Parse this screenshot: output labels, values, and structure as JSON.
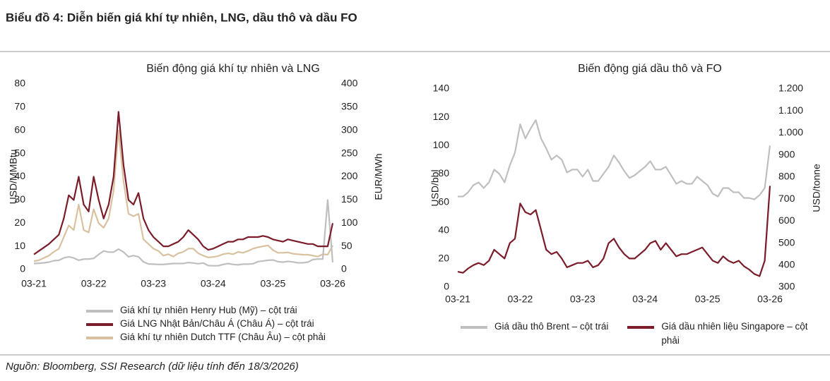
{
  "title": "Biểu đồ 4: Diễn biến giá khí tự nhiên, LNG, dầu thô và dầu FO",
  "source": "Nguồn: Bloomberg, SSI Research (dữ liệu tính đến 18/3/2026)",
  "chart_data": [
    {
      "type": "line",
      "title": "Biến động giá khí tự nhiên và LNG",
      "categories": [
        "03-21",
        null,
        null,
        null,
        null,
        null,
        null,
        null,
        null,
        null,
        null,
        null,
        "03-22",
        null,
        null,
        null,
        null,
        null,
        null,
        null,
        null,
        null,
        null,
        null,
        "03-23",
        null,
        null,
        null,
        null,
        null,
        null,
        null,
        null,
        null,
        null,
        null,
        "03-24",
        null,
        null,
        null,
        null,
        null,
        null,
        null,
        null,
        null,
        null,
        null,
        "03-25",
        null,
        null,
        null,
        null,
        null,
        null,
        null,
        null,
        null,
        null,
        null,
        "03-26"
      ],
      "ylabel": "USD/MMBtu",
      "y2label": "EUR/MWh",
      "ylim": [
        0,
        80
      ],
      "yticks": [
        0,
        10,
        20,
        30,
        40,
        50,
        60,
        70,
        80
      ],
      "y2lim": [
        0,
        400
      ],
      "y2ticks": [
        0,
        50,
        100,
        150,
        200,
        250,
        300,
        350,
        400
      ],
      "series": [
        {
          "name": "Giá khí tự nhiên Henry Hub (Mỹ) – cột trái",
          "color": "#bfbfbf",
          "values": [
            2.6,
            2.7,
            2.9,
            3.2,
            3.8,
            4.0,
            5.0,
            5.5,
            5.0,
            4.0,
            4.5,
            4.5,
            4.8,
            6.5,
            8.0,
            7.5,
            7.5,
            8.8,
            7.5,
            5.5,
            6.0,
            5.5,
            3.3,
            2.4,
            2.3,
            2.2,
            2.2,
            2.4,
            2.6,
            2.6,
            2.6,
            3.0,
            2.8,
            2.5,
            2.8,
            1.7,
            1.6,
            1.6,
            2.2,
            2.6,
            2.2,
            2.0,
            2.3,
            2.3,
            2.5,
            3.4,
            3.7,
            4.0,
            4.1,
            3.4,
            3.2,
            3.5,
            3.3,
            2.9,
            2.9,
            3.2,
            4.3,
            4.5,
            4.5,
            30,
            3.1
          ]
        },
        {
          "name": "Giá LNG Nhật Bản/Châu Á (Châu Á) – cột trái",
          "color": "#7b1c2a",
          "values": [
            6.5,
            8,
            9.5,
            11,
            13,
            15,
            22,
            32,
            30,
            40,
            28,
            25,
            40,
            30,
            22,
            28,
            40,
            68,
            45,
            30,
            28,
            33,
            22,
            17,
            14,
            12,
            10,
            10,
            11,
            12,
            14,
            17,
            15,
            13,
            10,
            8.5,
            9,
            10,
            11,
            12,
            12,
            13,
            13,
            14,
            14,
            14,
            14.5,
            14,
            13,
            12.5,
            12,
            13,
            12.5,
            12,
            11.5,
            11,
            11,
            10,
            10,
            10,
            20
          ]
        },
        {
          "name": "Giá khí tự nhiên Dutch TTF (Châu Âu) – cột phải",
          "color": "#d9c1a0",
          "axis": "y2",
          "values": [
            18,
            20,
            25,
            30,
            38,
            45,
            70,
            95,
            85,
            140,
            85,
            80,
            130,
            100,
            90,
            110,
            170,
            300,
            190,
            120,
            115,
            120,
            65,
            55,
            45,
            40,
            30,
            33,
            28,
            35,
            38,
            45,
            45,
            35,
            30,
            26,
            27,
            29,
            33,
            35,
            33,
            38,
            36,
            40,
            45,
            48,
            50,
            52,
            42,
            36,
            36,
            37,
            34,
            33,
            32,
            32,
            30,
            28,
            33,
            32,
            52
          ]
        }
      ]
    },
    {
      "type": "line",
      "title": "Biến động giá dầu thô và FO",
      "categories": [
        "03-21",
        null,
        null,
        null,
        null,
        null,
        null,
        null,
        null,
        null,
        null,
        null,
        "03-22",
        null,
        null,
        null,
        null,
        null,
        null,
        null,
        null,
        null,
        null,
        null,
        "03-23",
        null,
        null,
        null,
        null,
        null,
        null,
        null,
        null,
        null,
        null,
        null,
        "03-24",
        null,
        null,
        null,
        null,
        null,
        null,
        null,
        null,
        null,
        null,
        null,
        "03-25",
        null,
        null,
        null,
        null,
        null,
        null,
        null,
        null,
        null,
        null,
        null,
        "03-26"
      ],
      "ylabel": "USD/bbl",
      "y2label": "USD/tonne",
      "ylim": [
        0,
        140
      ],
      "yticks": [
        0,
        20,
        40,
        60,
        80,
        100,
        120,
        140
      ],
      "y2lim": [
        300,
        1200
      ],
      "y2ticks": [
        300,
        400,
        500,
        600,
        700,
        800,
        900,
        {
          "value": 1000,
          "label": "1.000"
        },
        {
          "value": 1100,
          "label": "1.100"
        },
        {
          "value": 1200,
          "label": "1.200"
        }
      ],
      "series": [
        {
          "name": "Giá dầu thô Brent – cột trái",
          "color": "#bfbfbf",
          "values": [
            64,
            64,
            67,
            72,
            74,
            70,
            74,
            83,
            80,
            74,
            86,
            95,
            115,
            105,
            112,
            118,
            105,
            98,
            90,
            93,
            90,
            81,
            83,
            83,
            78,
            83,
            75,
            75,
            80,
            85,
            93,
            88,
            82,
            77,
            79,
            82,
            85,
            89,
            83,
            83,
            85,
            79,
            73,
            75,
            73,
            73,
            78,
            75,
            72,
            66,
            64,
            70,
            70,
            67,
            67,
            63,
            63,
            62,
            65,
            70,
            100
          ]
        },
        {
          "name": "Giá dầu nhiên liệu Singapore – cột phải",
          "color": "#7b1c2a",
          "axis": "y2",
          "values": [
            370,
            365,
            385,
            400,
            410,
            400,
            420,
            470,
            450,
            430,
            500,
            520,
            680,
            640,
            630,
            650,
            560,
            470,
            450,
            460,
            430,
            390,
            400,
            410,
            410,
            420,
            390,
            400,
            430,
            500,
            520,
            480,
            450,
            430,
            430,
            450,
            470,
            500,
            510,
            470,
            500,
            470,
            440,
            450,
            450,
            460,
            470,
            480,
            450,
            420,
            410,
            440,
            420,
            410,
            420,
            395,
            380,
            360,
            350,
            420,
            760
          ]
        }
      ]
    }
  ]
}
